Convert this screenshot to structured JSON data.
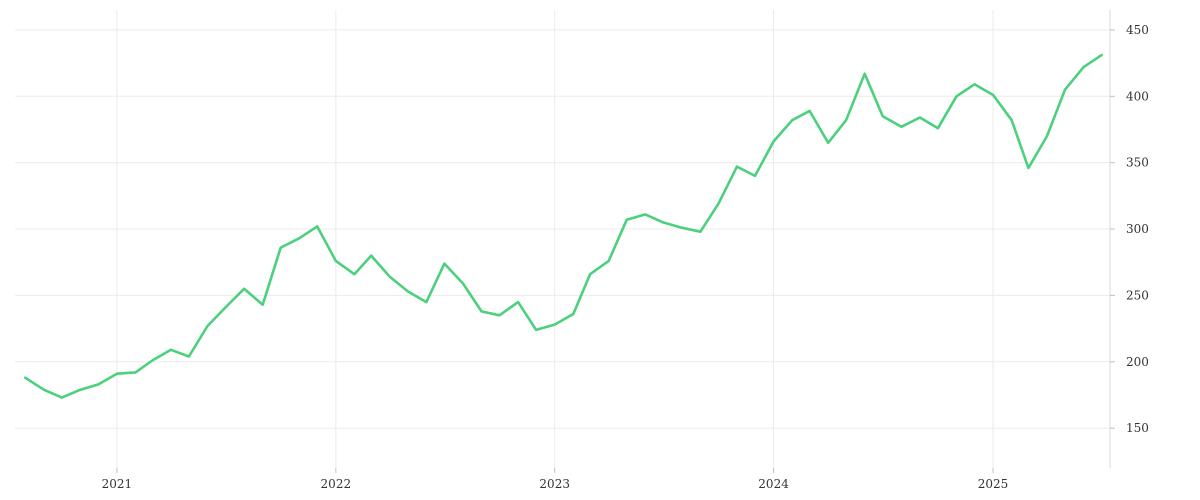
{
  "chart_data": {
    "type": "line",
    "title": "",
    "xlabel": "",
    "ylabel": "",
    "x_axis": {
      "kind": "date",
      "range": [
        "2020-07-15",
        "2025-07-15"
      ],
      "ticks": [
        {
          "date": "2021-01-01",
          "label": "2021"
        },
        {
          "date": "2022-01-01",
          "label": "2022"
        },
        {
          "date": "2023-01-01",
          "label": "2023"
        },
        {
          "date": "2024-01-01",
          "label": "2024"
        },
        {
          "date": "2025-01-01",
          "label": "2025"
        }
      ]
    },
    "y_axis": {
      "position": "right",
      "range": [
        120,
        465
      ],
      "ticks": [
        150,
        200,
        250,
        300,
        350,
        400,
        450
      ]
    },
    "grid": true,
    "series": [
      {
        "color": "#4cd07d",
        "points": [
          [
            "2020-08-01",
            188
          ],
          [
            "2020-09-01",
            179
          ],
          [
            "2020-10-01",
            173
          ],
          [
            "2020-11-01",
            179
          ],
          [
            "2020-12-01",
            183
          ],
          [
            "2021-01-01",
            191
          ],
          [
            "2021-02-01",
            192
          ],
          [
            "2021-03-01",
            201
          ],
          [
            "2021-04-01",
            209
          ],
          [
            "2021-05-01",
            204
          ],
          [
            "2021-06-01",
            227
          ],
          [
            "2021-07-01",
            241
          ],
          [
            "2021-08-01",
            255
          ],
          [
            "2021-09-01",
            243
          ],
          [
            "2021-10-01",
            286
          ],
          [
            "2021-11-01",
            293
          ],
          [
            "2021-12-01",
            302
          ],
          [
            "2022-01-01",
            276
          ],
          [
            "2022-02-01",
            266
          ],
          [
            "2022-03-01",
            280
          ],
          [
            "2022-04-01",
            264
          ],
          [
            "2022-05-01",
            253
          ],
          [
            "2022-06-01",
            245
          ],
          [
            "2022-07-01",
            274
          ],
          [
            "2022-08-01",
            259
          ],
          [
            "2022-09-01",
            238
          ],
          [
            "2022-10-01",
            235
          ],
          [
            "2022-11-01",
            245
          ],
          [
            "2022-12-01",
            224
          ],
          [
            "2023-01-01",
            228
          ],
          [
            "2023-02-01",
            236
          ],
          [
            "2023-03-01",
            266
          ],
          [
            "2023-04-01",
            276
          ],
          [
            "2023-05-01",
            307
          ],
          [
            "2023-06-01",
            311
          ],
          [
            "2023-07-01",
            305
          ],
          [
            "2023-08-01",
            301
          ],
          [
            "2023-09-01",
            298
          ],
          [
            "2023-10-01",
            319
          ],
          [
            "2023-11-01",
            347
          ],
          [
            "2023-12-01",
            340
          ],
          [
            "2024-01-01",
            366
          ],
          [
            "2024-02-01",
            382
          ],
          [
            "2024-03-01",
            389
          ],
          [
            "2024-04-01",
            365
          ],
          [
            "2024-05-01",
            382
          ],
          [
            "2024-06-01",
            417
          ],
          [
            "2024-07-01",
            385
          ],
          [
            "2024-08-01",
            377
          ],
          [
            "2024-09-01",
            384
          ],
          [
            "2024-10-01",
            376
          ],
          [
            "2024-11-01",
            400
          ],
          [
            "2024-12-01",
            409
          ],
          [
            "2025-01-01",
            401
          ],
          [
            "2025-02-01",
            382
          ],
          [
            "2025-03-01",
            346
          ],
          [
            "2025-04-01",
            370
          ],
          [
            "2025-05-01",
            405
          ],
          [
            "2025-06-01",
            422
          ],
          [
            "2025-07-01",
            431
          ]
        ]
      }
    ]
  }
}
